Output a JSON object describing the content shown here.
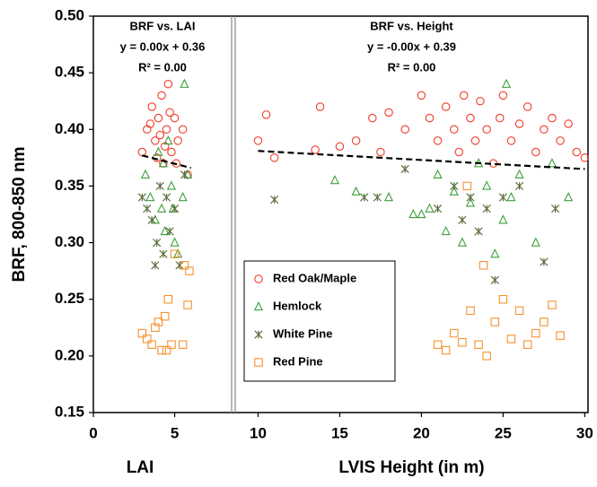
{
  "chart_data": [
    {
      "type": "scatter",
      "y_label": "BRF, 800-850 nm",
      "x_label": "LAI",
      "annotations": [
        "BRF vs. LAI",
        "y = 0.00x + 0.36",
        "R² = 0.00"
      ],
      "xlim": [
        0,
        8.5
      ],
      "xticks": [
        0,
        5
      ],
      "ylim": [
        0.15,
        0.5
      ],
      "yticks": [
        0.15,
        {
          "value": 0.2,
          "label": "0.20"
        },
        0.25,
        {
          "value": 0.3,
          "label": "0.30"
        },
        0.35,
        {
          "value": 0.4,
          "label": "0.40"
        },
        0.45,
        {
          "value": 0.5,
          "label": "0.50"
        }
      ],
      "trend": {
        "x": [
          3,
          6
        ],
        "values": [
          0.377,
          0.366
        ]
      },
      "series": [
        {
          "color": "#f03c28",
          "marker": "circle",
          "x": [
            3.0,
            3.3,
            3.6,
            3.8,
            4.0,
            4.2,
            4.3,
            4.5,
            4.6,
            4.8,
            5.0,
            5.2,
            5.5,
            5.8,
            4.1,
            3.9,
            4.4,
            4.7,
            5.1,
            3.5
          ],
          "values": [
            0.38,
            0.4,
            0.42,
            0.39,
            0.41,
            0.43,
            0.37,
            0.4,
            0.44,
            0.38,
            0.41,
            0.39,
            0.4,
            0.36,
            0.395,
            0.375,
            0.385,
            0.415,
            0.37,
            0.405
          ]
        },
        {
          "color": "#3ca03c",
          "marker": "triangle",
          "x": [
            3.2,
            3.5,
            3.8,
            4.0,
            4.2,
            4.4,
            4.6,
            4.8,
            5.0,
            5.2,
            5.5,
            5.8,
            4.3,
            4.9,
            5.6
          ],
          "values": [
            0.36,
            0.34,
            0.32,
            0.38,
            0.33,
            0.31,
            0.39,
            0.35,
            0.3,
            0.29,
            0.34,
            0.36,
            0.37,
            0.33,
            0.44
          ]
        },
        {
          "color": "#5a6e3c",
          "marker": "star",
          "x": [
            3.0,
            3.3,
            3.6,
            3.9,
            4.1,
            4.3,
            4.5,
            4.7,
            5.0,
            5.3,
            5.6,
            3.8
          ],
          "values": [
            0.34,
            0.33,
            0.32,
            0.3,
            0.35,
            0.29,
            0.34,
            0.31,
            0.33,
            0.28,
            0.36,
            0.28
          ]
        },
        {
          "color": "#f5912d",
          "marker": "square",
          "x": [
            3.0,
            3.3,
            3.6,
            3.8,
            4.0,
            4.2,
            4.4,
            4.6,
            4.8,
            5.0,
            5.5,
            5.8,
            5.9,
            4.5,
            5.6
          ],
          "values": [
            0.22,
            0.215,
            0.21,
            0.225,
            0.23,
            0.205,
            0.235,
            0.25,
            0.21,
            0.29,
            0.21,
            0.245,
            0.275,
            0.205,
            0.28
          ]
        }
      ]
    },
    {
      "type": "scatter",
      "x_label": "LVIS Height (in m)",
      "annotations": [
        "BRF vs. Height",
        "y = -0.00x + 0.39",
        "R² = 0.00"
      ],
      "xlim": [
        8.6,
        30.2
      ],
      "xticks": [
        10,
        15,
        20,
        25,
        30
      ],
      "ylim": [
        0.15,
        0.5
      ],
      "legend": "lower-left",
      "trend": {
        "x": [
          10,
          30
        ],
        "values": [
          0.381,
          0.365
        ]
      },
      "series": [
        {
          "name": "Red Oak/Maple",
          "color": "#f03c28",
          "marker": "circle",
          "x": [
            10,
            10.5,
            11,
            13.5,
            13.8,
            15,
            16,
            17,
            17.5,
            18,
            19,
            20,
            20.5,
            21,
            21.5,
            22,
            22.3,
            22.6,
            23,
            23.3,
            23.6,
            24,
            24.4,
            24.8,
            25,
            25.5,
            26,
            26.5,
            27,
            27.5,
            28,
            28.5,
            29,
            29.5,
            30
          ],
          "values": [
            0.39,
            0.413,
            0.375,
            0.382,
            0.42,
            0.385,
            0.39,
            0.41,
            0.38,
            0.415,
            0.4,
            0.43,
            0.41,
            0.39,
            0.42,
            0.4,
            0.38,
            0.43,
            0.41,
            0.39,
            0.425,
            0.4,
            0.37,
            0.41,
            0.43,
            0.39,
            0.405,
            0.42,
            0.38,
            0.4,
            0.41,
            0.39,
            0.405,
            0.38,
            0.375
          ]
        },
        {
          "name": "Hemlock",
          "color": "#3ca03c",
          "marker": "triangle",
          "x": [
            14.7,
            16,
            18,
            19.5,
            20,
            20.5,
            21,
            21.5,
            22,
            22.5,
            23,
            23.5,
            24,
            24.5,
            25,
            25.2,
            25.5,
            26,
            27,
            28,
            29
          ],
          "values": [
            0.355,
            0.345,
            0.34,
            0.325,
            0.325,
            0.33,
            0.36,
            0.31,
            0.345,
            0.3,
            0.335,
            0.37,
            0.35,
            0.29,
            0.32,
            0.44,
            0.34,
            0.36,
            0.3,
            0.37,
            0.34
          ]
        },
        {
          "name": "White Pine",
          "color": "#5a6e3c",
          "marker": "star",
          "x": [
            11,
            16.5,
            17.3,
            19,
            21,
            22,
            22.5,
            23,
            23.5,
            24,
            24.5,
            25,
            26,
            27.5,
            28.2
          ],
          "values": [
            0.338,
            0.34,
            0.34,
            0.365,
            0.33,
            0.35,
            0.32,
            0.34,
            0.31,
            0.33,
            0.267,
            0.34,
            0.35,
            0.283,
            0.33
          ]
        },
        {
          "name": "Red Pine",
          "color": "#f5912d",
          "marker": "square",
          "x": [
            21,
            21.5,
            22,
            22.5,
            23,
            23.5,
            24,
            24.5,
            25,
            25.5,
            26,
            26.5,
            27,
            27.5,
            28,
            28.5,
            22.8,
            23.8
          ],
          "values": [
            0.21,
            0.205,
            0.22,
            0.212,
            0.24,
            0.21,
            0.2,
            0.23,
            0.25,
            0.215,
            0.24,
            0.21,
            0.22,
            0.23,
            0.245,
            0.218,
            0.35,
            0.28
          ]
        }
      ]
    }
  ]
}
